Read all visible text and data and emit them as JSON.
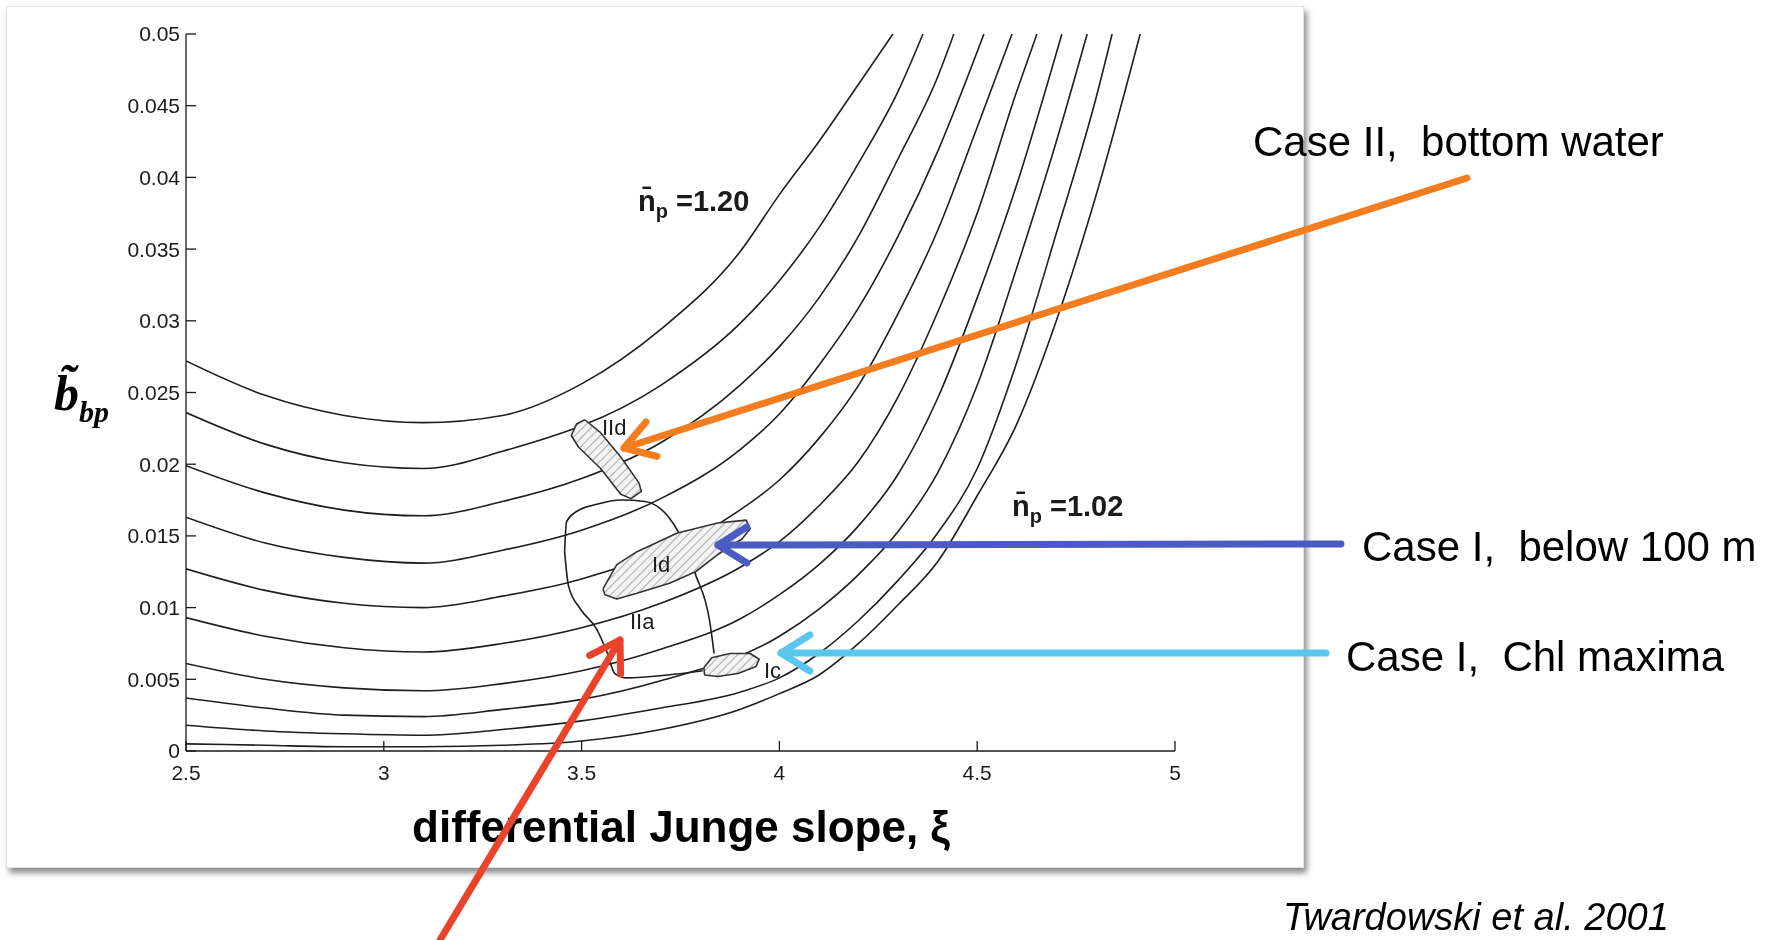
{
  "chart_data": {
    "type": "line",
    "xlabel": "differential Junge slope, ξ",
    "ylabel": "b̃$_{bp}$",
    "xlim": [
      2.5,
      5
    ],
    "ylim": [
      0,
      0.05
    ],
    "xticks": [
      2.5,
      3,
      3.5,
      4,
      4.5,
      5
    ],
    "yticks": [
      0,
      0.005,
      0.01,
      0.015,
      0.02,
      0.025,
      0.03,
      0.035,
      0.04,
      0.045,
      0.05
    ],
    "series": [
      {
        "color": "#1e1e1e",
        "x": [
          2.5,
          2.7,
          2.9,
          3.1,
          3.3,
          3.5,
          3.7,
          3.9,
          4.0,
          4.1,
          4.2,
          4.287
        ],
        "values": [
          0.0272,
          0.0248,
          0.0234,
          0.0229,
          0.0234,
          0.0256,
          0.0294,
          0.0348,
          0.0388,
          0.0425,
          0.0465,
          0.05
        ]
      },
      {
        "color": "#1e1e1e",
        "x": [
          2.5,
          2.7,
          2.9,
          3.1,
          3.3,
          3.7,
          3.9,
          4.0,
          4.1,
          4.2,
          4.3,
          4.363
        ],
        "values": [
          0.0236,
          0.0214,
          0.0201,
          0.0197,
          0.0209,
          0.0255,
          0.0298,
          0.0328,
          0.0365,
          0.041,
          0.046,
          0.05
        ]
      },
      {
        "color": "#1e1e1e",
        "x": [
          2.5,
          2.7,
          2.9,
          3.1,
          3.3,
          3.5,
          3.7,
          3.9,
          4.0,
          4.1,
          4.2,
          4.3,
          4.4,
          4.441
        ],
        "values": [
          0.0199,
          0.018,
          0.0168,
          0.0164,
          0.0174,
          0.019,
          0.0215,
          0.0255,
          0.0282,
          0.0316,
          0.0359,
          0.0413,
          0.047,
          0.05
        ]
      },
      {
        "color": "#1e1e1e",
        "x": [
          2.5,
          2.7,
          2.9,
          3.1,
          3.3,
          3.5,
          3.7,
          3.9,
          4.0,
          4.1,
          4.2,
          4.3,
          4.4,
          4.517
        ],
        "values": [
          0.0163,
          0.0145,
          0.0135,
          0.0131,
          0.014,
          0.0154,
          0.0176,
          0.021,
          0.0235,
          0.0269,
          0.0309,
          0.0359,
          0.0418,
          0.05
        ]
      },
      {
        "color": "#1e1e1e",
        "x": [
          2.5,
          2.7,
          2.9,
          3.1,
          3.3,
          3.5,
          3.9,
          4.0,
          4.1,
          4.2,
          4.3,
          4.4,
          4.5,
          4.588
        ],
        "values": [
          0.0127,
          0.0112,
          0.0103,
          0.01,
          0.0108,
          0.012,
          0.0168,
          0.0189,
          0.0218,
          0.0255,
          0.0305,
          0.0363,
          0.0435,
          0.05
        ]
      },
      {
        "color": "#1e1e1e",
        "x": [
          2.5,
          2.7,
          2.9,
          3.1,
          3.3,
          3.5,
          3.7,
          3.9,
          4.0,
          4.1,
          4.2,
          4.3,
          4.4,
          4.5,
          4.6,
          4.651
        ],
        "values": [
          0.0093,
          0.008,
          0.0072,
          0.0069,
          0.0075,
          0.0086,
          0.0103,
          0.0128,
          0.0146,
          0.0171,
          0.0202,
          0.0247,
          0.0306,
          0.0375,
          0.046,
          0.05
        ]
      },
      {
        "color": "#1e1e1e",
        "x": [
          2.5,
          2.7,
          2.9,
          3.1,
          3.3,
          3.5,
          3.7,
          3.9,
          4.0,
          4.1,
          4.2,
          4.3,
          4.4,
          4.5,
          4.6,
          4.714
        ],
        "values": [
          0.0061,
          0.005,
          0.0044,
          0.0042,
          0.0047,
          0.0056,
          0.0071,
          0.0092,
          0.0109,
          0.013,
          0.0157,
          0.0193,
          0.0246,
          0.0316,
          0.0395,
          0.05
        ]
      },
      {
        "color": "#1e1e1e",
        "x": [
          2.5,
          2.7,
          2.9,
          3.1,
          3.3,
          3.5,
          3.7,
          4.0,
          4.1,
          4.2,
          4.3,
          4.4,
          4.5,
          4.6,
          4.7,
          4.778
        ],
        "values": [
          0.0037,
          0.003,
          0.0025,
          0.0024,
          0.0029,
          0.0036,
          0.0049,
          0.008,
          0.0099,
          0.0123,
          0.0153,
          0.0194,
          0.0255,
          0.0337,
          0.0425,
          0.05
        ]
      },
      {
        "color": "#1e1e1e",
        "x": [
          2.5,
          2.7,
          2.9,
          3.1,
          3.3,
          3.5,
          3.7,
          3.9,
          4.0,
          4.1,
          4.2,
          4.3,
          4.4,
          4.5,
          4.6,
          4.7,
          4.8,
          4.841
        ],
        "values": [
          0.0018,
          0.0014,
          0.0012,
          0.0011,
          0.0015,
          0.0021,
          0.003,
          0.0041,
          0.0051,
          0.0068,
          0.0091,
          0.0119,
          0.0152,
          0.0197,
          0.0271,
          0.0361,
          0.0455,
          0.05
        ]
      },
      {
        "color": "#1e1e1e",
        "x": [
          2.5,
          2.7,
          2.9,
          3.1,
          3.3,
          3.5,
          3.7,
          3.9,
          4.0,
          4.1,
          4.2,
          4.3,
          4.4,
          4.5,
          4.6,
          4.7,
          4.8,
          4.912
        ],
        "values": [
          0.0005,
          0.0004,
          0.0003,
          0.0003,
          0.0004,
          0.0007,
          0.0015,
          0.0029,
          0.004,
          0.0053,
          0.0075,
          0.0102,
          0.0132,
          0.0178,
          0.0228,
          0.03,
          0.0387,
          0.05
        ]
      },
      {
        "color": "#1e1e1e",
        "x": [
          3.457,
          3.462,
          3.487,
          3.538,
          3.599,
          3.66,
          3.742,
          3.788,
          3.824,
          3.835
        ],
        "values": [
          0.0139,
          0.016,
          0.0167,
          0.0172,
          0.0175,
          0.0174,
          0.0154,
          0.0123,
          0.009,
          0.0068
        ]
      },
      {
        "color": "#1e1e1e",
        "x": [
          3.457,
          3.467,
          3.497,
          3.538,
          3.564,
          3.584,
          3.615,
          3.717,
          3.806
        ],
        "values": [
          0.0139,
          0.0115,
          0.0099,
          0.0085,
          0.0069,
          0.0054,
          0.0051,
          0.0053,
          0.0056
        ]
      },
      {
        "type": "area",
        "color": "#333333",
        "x": [
          3.508,
          3.548,
          3.599,
          3.645,
          3.651,
          3.625,
          3.599,
          3.548,
          3.492,
          3.474,
          3.487,
          3.508
        ],
        "values": [
          0.0231,
          0.0222,
          0.0205,
          0.0187,
          0.0181,
          0.0176,
          0.0179,
          0.0197,
          0.0212,
          0.022,
          0.0228,
          0.0231
        ]
      },
      {
        "type": "area",
        "color": "#333333",
        "x": [
          3.554,
          3.589,
          3.64,
          3.742,
          3.844,
          3.916,
          3.926,
          3.906,
          3.844,
          3.788,
          3.722,
          3.64,
          3.589,
          3.559,
          3.554
        ],
        "values": [
          0.0113,
          0.013,
          0.0139,
          0.0152,
          0.0159,
          0.0161,
          0.0155,
          0.0148,
          0.0137,
          0.0125,
          0.0117,
          0.011,
          0.0106,
          0.0109,
          0.0113
        ]
      },
      {
        "type": "area",
        "color": "#333333",
        "x": [
          3.809,
          3.829,
          3.875,
          3.926,
          3.949,
          3.941,
          3.895,
          3.844,
          3.811,
          3.809
        ],
        "values": [
          0.0058,
          0.0065,
          0.0068,
          0.0068,
          0.0064,
          0.0059,
          0.0054,
          0.0052,
          0.0053,
          0.0058
        ]
      }
    ],
    "annotations": [
      "n̄$_{p}$ =1.20",
      "n̄$_{p}$ =1.02",
      "IId",
      "Id",
      "IIa",
      "Ic",
      "Case II,  bottom water",
      "Case I,  below 100 m",
      "Case I,  Chl maxima",
      "Twardowski et al. 2001"
    ]
  }
}
